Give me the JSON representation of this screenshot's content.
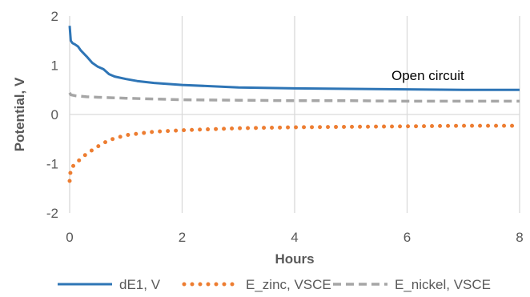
{
  "chart_data": {
    "type": "line",
    "xlabel": "Hours",
    "ylabel": "Potential, V",
    "xlim": [
      0,
      8
    ],
    "ylim": [
      -2,
      2
    ],
    "xticks": [
      "0",
      "2",
      "4",
      "6",
      "8"
    ],
    "yticks": [
      "2",
      "1",
      "0",
      "-1",
      "-2"
    ],
    "grid": "vertical",
    "legend_position": "bottom",
    "annotation": "Open circuit",
    "series": [
      {
        "name": "dE1, V",
        "color": "#2e75b6",
        "style": "solid",
        "x": [
          0,
          0.02,
          0.05,
          0.1,
          0.15,
          0.2,
          0.3,
          0.4,
          0.5,
          0.6,
          0.7,
          0.8,
          1.0,
          1.2,
          1.5,
          2.0,
          3.0,
          4.0,
          5.0,
          6.0,
          7.0,
          8.0
        ],
        "y": [
          1.8,
          1.5,
          1.45,
          1.42,
          1.38,
          1.3,
          1.18,
          1.05,
          0.97,
          0.92,
          0.82,
          0.77,
          0.72,
          0.68,
          0.64,
          0.6,
          0.55,
          0.53,
          0.52,
          0.51,
          0.5,
          0.5
        ]
      },
      {
        "name": "E_zinc, VSCE",
        "color": "#ed7d31",
        "style": "dotted",
        "x": [
          0,
          0.02,
          0.1,
          0.2,
          0.3,
          0.5,
          0.7,
          1.0,
          1.5,
          2.0,
          3.0,
          4.0,
          5.0,
          6.0,
          7.0,
          8.0
        ],
        "y": [
          -1.35,
          -1.1,
          -1.0,
          -0.9,
          -0.8,
          -0.65,
          -0.52,
          -0.42,
          -0.35,
          -0.32,
          -0.28,
          -0.26,
          -0.25,
          -0.24,
          -0.23,
          -0.23
        ]
      },
      {
        "name": "E_nickel, VSCE",
        "color": "#a6a6a6",
        "style": "dashed",
        "x": [
          0,
          0.02,
          0.1,
          0.3,
          0.5,
          1.0,
          2.0,
          3.0,
          4.0,
          5.0,
          6.0,
          7.0,
          8.0
        ],
        "y": [
          0.44,
          0.4,
          0.38,
          0.36,
          0.35,
          0.33,
          0.3,
          0.29,
          0.28,
          0.28,
          0.27,
          0.27,
          0.27
        ]
      }
    ]
  }
}
